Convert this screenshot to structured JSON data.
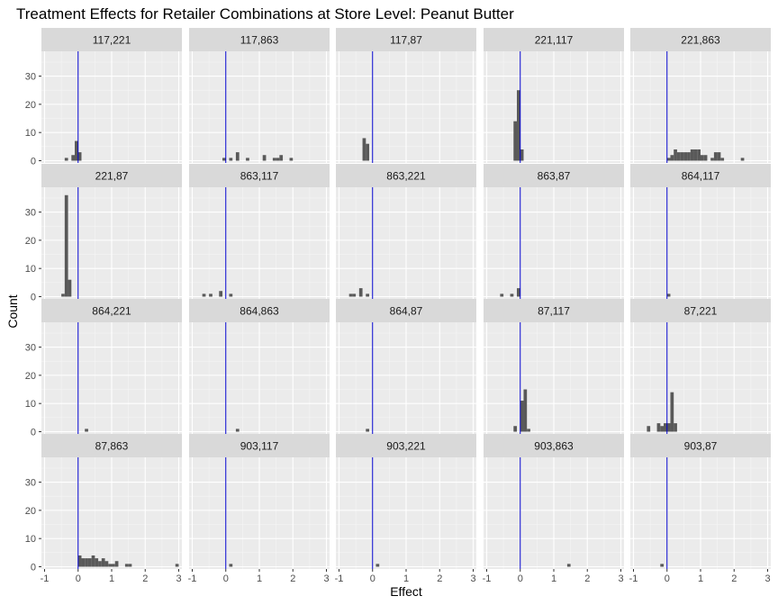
{
  "chart_data": {
    "type": "histogram-facets",
    "title": "Treatment Effects for Retailer Combinations at Store Level: Peanut Butter",
    "xlabel": "Effect",
    "ylabel": "Count",
    "xlim": [
      -1,
      3
    ],
    "ylim": [
      0,
      38
    ],
    "x_ticks": [
      -1,
      0,
      1,
      2,
      3
    ],
    "y_ticks": [
      0,
      10,
      20,
      30
    ],
    "grid": true,
    "reference_line": {
      "x": 0,
      "color": "#0000cc"
    },
    "bar_color": "#595959",
    "panel_background": "#ebebeb",
    "strip_background": "#d9d9d9",
    "bin_width": 0.1,
    "panels": [
      {
        "label": "117,221",
        "bins": [
          [
            -0.35,
            1
          ],
          [
            -0.15,
            2
          ],
          [
            -0.05,
            7
          ],
          [
            0.05,
            3
          ]
        ]
      },
      {
        "label": "117,863",
        "bins": [
          [
            -0.05,
            1
          ],
          [
            0.15,
            1
          ],
          [
            0.35,
            3
          ],
          [
            0.65,
            1
          ],
          [
            1.15,
            2
          ],
          [
            1.45,
            1
          ],
          [
            1.55,
            1
          ],
          [
            1.65,
            2
          ],
          [
            1.95,
            1
          ]
        ]
      },
      {
        "label": "117,87",
        "bins": [
          [
            -0.25,
            8
          ],
          [
            -0.15,
            6
          ]
        ]
      },
      {
        "label": "221,117",
        "bins": [
          [
            -0.15,
            14
          ],
          [
            -0.05,
            25
          ],
          [
            0.05,
            4
          ]
        ]
      },
      {
        "label": "221,863",
        "bins": [
          [
            0.05,
            1
          ],
          [
            0.15,
            2
          ],
          [
            0.25,
            4
          ],
          [
            0.35,
            3
          ],
          [
            0.45,
            3
          ],
          [
            0.55,
            3
          ],
          [
            0.65,
            3
          ],
          [
            0.75,
            4
          ],
          [
            0.85,
            4
          ],
          [
            0.95,
            4
          ],
          [
            1.05,
            2
          ],
          [
            1.15,
            2
          ],
          [
            1.35,
            1
          ],
          [
            1.45,
            3
          ],
          [
            1.55,
            3
          ],
          [
            1.65,
            1
          ],
          [
            2.25,
            1
          ]
        ]
      },
      {
        "label": "221,87",
        "bins": [
          [
            -0.45,
            1
          ],
          [
            -0.35,
            36
          ],
          [
            -0.25,
            6
          ]
        ]
      },
      {
        "label": "863,117",
        "bins": [
          [
            -0.65,
            1
          ],
          [
            -0.45,
            1
          ],
          [
            -0.15,
            2
          ],
          [
            0.15,
            1
          ]
        ]
      },
      {
        "label": "863,221",
        "bins": [
          [
            -0.65,
            1
          ],
          [
            -0.55,
            1
          ],
          [
            -0.35,
            3
          ],
          [
            -0.15,
            1
          ]
        ]
      },
      {
        "label": "863,87",
        "bins": [
          [
            -0.55,
            1
          ],
          [
            -0.25,
            1
          ],
          [
            -0.05,
            3
          ]
        ]
      },
      {
        "label": "864,117",
        "bins": [
          [
            0.05,
            1
          ]
        ]
      },
      {
        "label": "864,221",
        "bins": [
          [
            0.25,
            1
          ]
        ]
      },
      {
        "label": "864,863",
        "bins": [
          [
            0.35,
            1
          ]
        ]
      },
      {
        "label": "864,87",
        "bins": [
          [
            -0.15,
            1
          ]
        ]
      },
      {
        "label": "87,117",
        "bins": [
          [
            -0.15,
            2
          ],
          [
            0.05,
            11
          ],
          [
            0.15,
            15
          ],
          [
            0.25,
            1
          ]
        ]
      },
      {
        "label": "87,221",
        "bins": [
          [
            -0.55,
            2
          ],
          [
            -0.25,
            3
          ],
          [
            -0.15,
            2
          ],
          [
            -0.05,
            3
          ],
          [
            0.05,
            3
          ],
          [
            0.15,
            14
          ],
          [
            0.25,
            3
          ]
        ]
      },
      {
        "label": "87,863",
        "bins": [
          [
            0.05,
            4
          ],
          [
            0.15,
            3
          ],
          [
            0.25,
            3
          ],
          [
            0.35,
            3
          ],
          [
            0.45,
            4
          ],
          [
            0.55,
            3
          ],
          [
            0.65,
            2
          ],
          [
            0.75,
            3
          ],
          [
            0.85,
            2
          ],
          [
            0.95,
            1
          ],
          [
            1.05,
            1
          ],
          [
            1.15,
            2
          ],
          [
            1.45,
            1
          ],
          [
            1.55,
            1
          ],
          [
            2.95,
            1
          ]
        ]
      },
      {
        "label": "903,117",
        "bins": [
          [
            0.15,
            1
          ]
        ]
      },
      {
        "label": "903,221",
        "bins": [
          [
            0.15,
            1
          ]
        ]
      },
      {
        "label": "903,863",
        "bins": [
          [
            1.45,
            1
          ]
        ]
      },
      {
        "label": "903,87",
        "bins": [
          [
            -0.15,
            1
          ]
        ]
      }
    ]
  }
}
